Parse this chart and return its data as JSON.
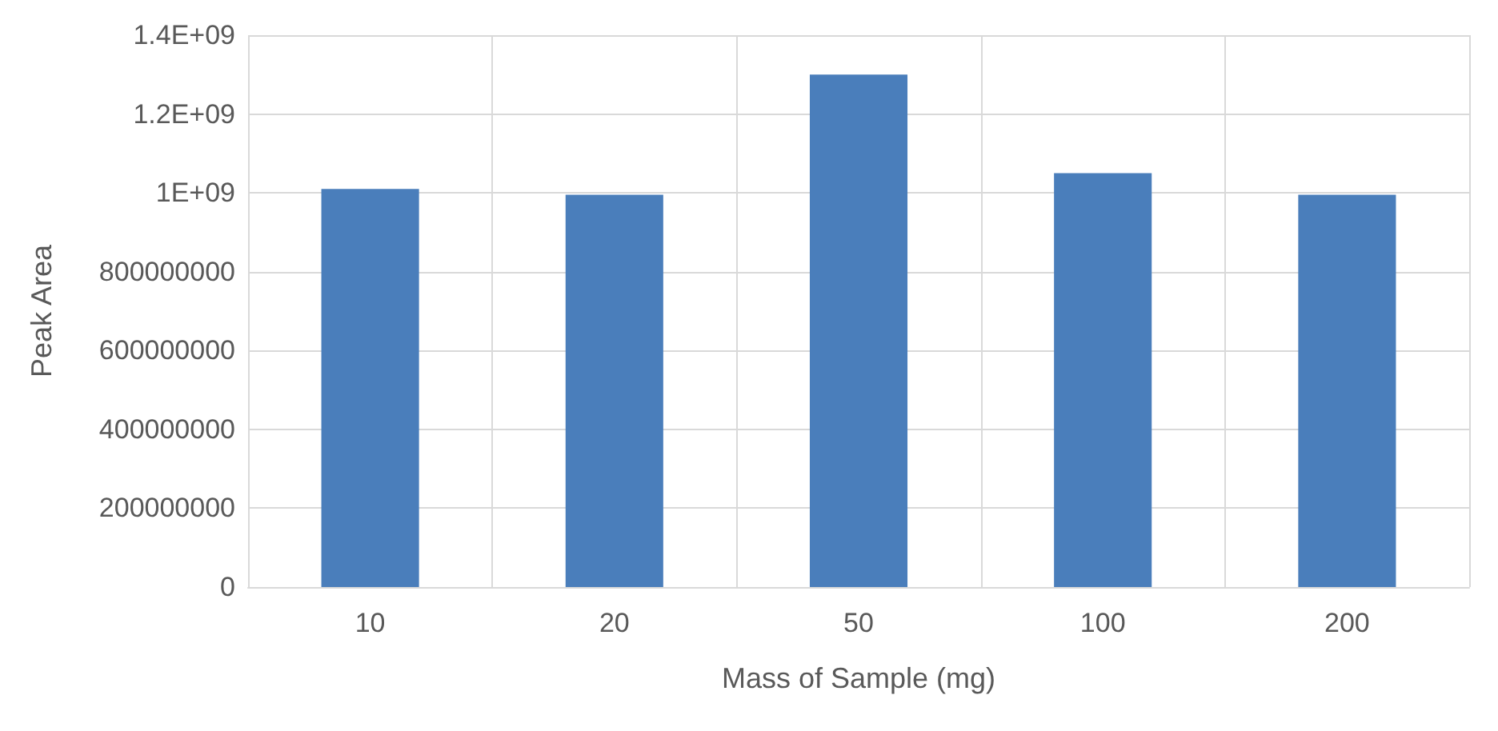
{
  "chart_data": {
    "type": "bar",
    "xlabel": "Mass of Sample (mg)",
    "ylabel": "Peak Area",
    "categories": [
      "10",
      "20",
      "50",
      "100",
      "200"
    ],
    "values": [
      1010000000,
      995000000,
      1300000000,
      1050000000,
      995000000
    ],
    "color": "#4a7ebb",
    "ylim": [
      0,
      1400000000
    ],
    "yticks": [
      0,
      200000000,
      400000000,
      600000000,
      800000000,
      {
        "value": 1000000000,
        "label": "1E+09"
      },
      {
        "value": 1200000000,
        "label": "1.2E+09"
      },
      {
        "value": 1400000000,
        "label": "1.4E+09"
      }
    ],
    "grid": true
  }
}
